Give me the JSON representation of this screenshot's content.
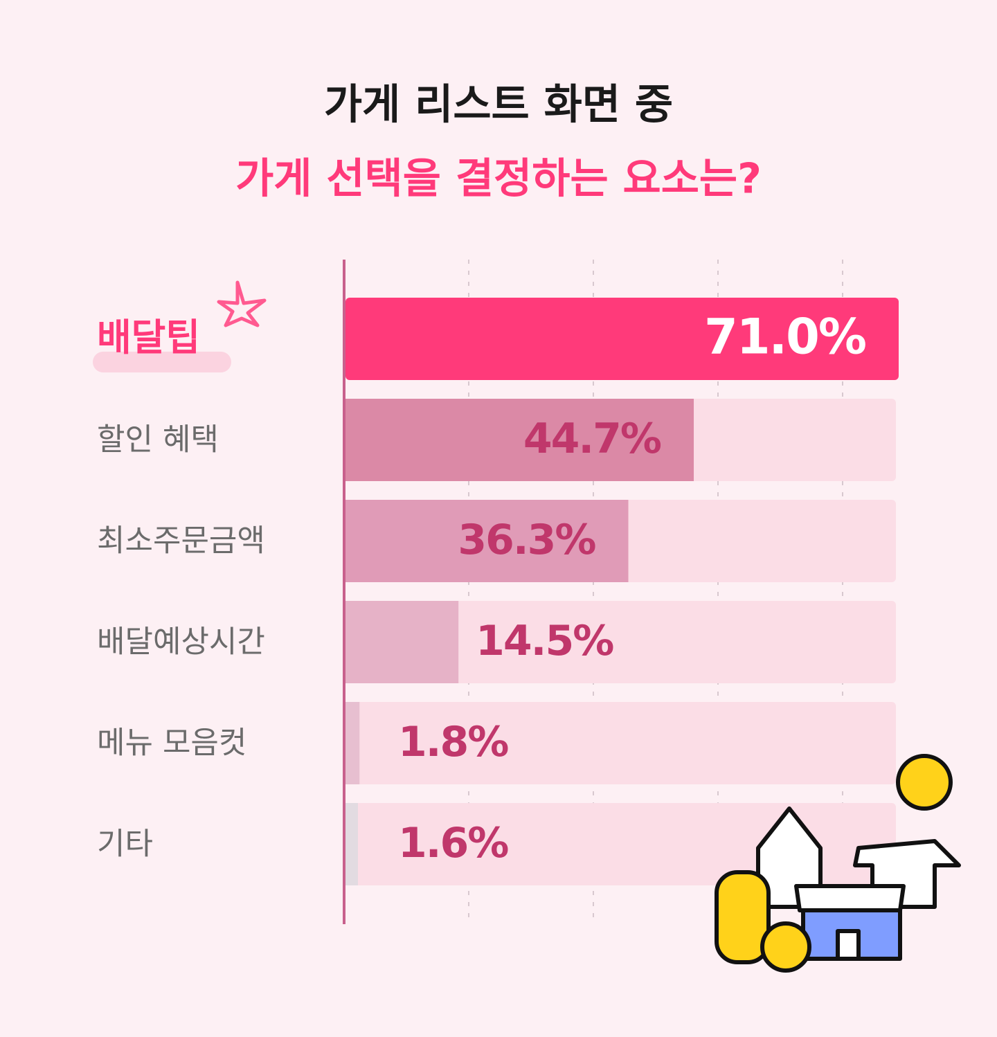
{
  "chart_data": {
    "type": "hbar",
    "title": "가게 리스트 화면 중",
    "subtitle": "가게 선택을 결정하는 요소는?",
    "categories": [
      "배달팁",
      "할인 혜택",
      "최소주문금액",
      "배달예상시간",
      "메뉴 모음컷",
      "기타"
    ],
    "values": [
      71.0,
      44.7,
      36.3,
      14.5,
      1.8,
      1.6
    ],
    "value_labels": [
      "71.0%",
      "44.7%",
      "36.3%",
      "14.5%",
      "1.8%",
      "1.6%"
    ],
    "colors": [
      "#ff3a7a",
      "#db89a6",
      "#e09bb7",
      "#e6b2c7",
      "#e7bfd0",
      "#e2dbe1"
    ],
    "track_color": "#fbdde6",
    "grid": true
  }
}
